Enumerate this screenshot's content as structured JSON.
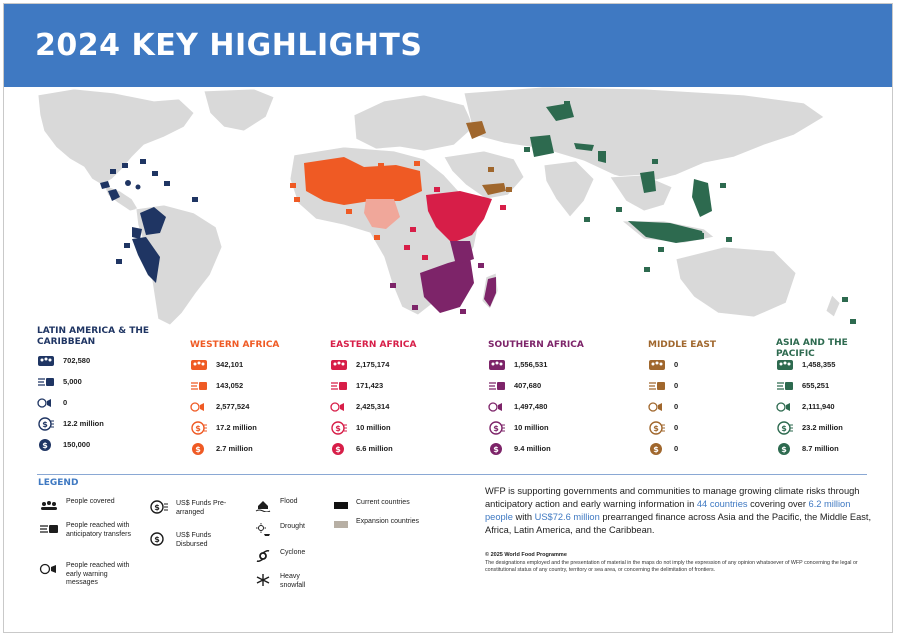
{
  "page": {
    "title": "2024 KEY HIGHLIGHTS"
  },
  "colors": {
    "banner": "#3f79c2",
    "latin_america": "#1f3563",
    "western_africa": "#ef5a24",
    "eastern_africa": "#d71e48",
    "southern_africa": "#7d2469",
    "middle_east": "#a0672d",
    "asia_pacific": "#2d6a4f",
    "expansion": "#b7afa4",
    "land": "#d9d9d9"
  },
  "icons": [
    "people-covered-icon",
    "anticipatory-transfer-icon",
    "early-warning-icon",
    "funds-prearranged-icon",
    "funds-disbursed-icon",
    "flood-icon",
    "drought-icon",
    "cyclone-icon",
    "snowfall-icon"
  ],
  "regions": [
    {
      "id": "latin-america",
      "title": "LATIN AMERICA & THE CARIBBEAN",
      "color": "#1f3563",
      "people_covered": "702,580",
      "anticipatory_transfers": "5,000",
      "early_warning": "0",
      "funds_prearranged": "12.2 million",
      "funds_disbursed": "150,000"
    },
    {
      "id": "western-africa",
      "title": "WESTERN AFRICA",
      "color": "#ef5a24",
      "people_covered": "342,101",
      "anticipatory_transfers": "143,052",
      "early_warning": "2,577,524",
      "funds_prearranged": "17.2 million",
      "funds_disbursed": "2.7 million"
    },
    {
      "id": "eastern-africa",
      "title": "EASTERN AFRICA",
      "color": "#d71e48",
      "people_covered": "2,175,174",
      "anticipatory_transfers": "171,423",
      "early_warning": "2,425,314",
      "funds_prearranged": "10 million",
      "funds_disbursed": "6.6 million"
    },
    {
      "id": "southern-africa",
      "title": "SOUTHERN AFRICA",
      "color": "#7d2469",
      "people_covered": "1,556,531",
      "anticipatory_transfers": "407,680",
      "early_warning": "1,497,480",
      "funds_prearranged": "10 million",
      "funds_disbursed": "9.4 million"
    },
    {
      "id": "middle-east",
      "title": "MIDDLE EAST",
      "color": "#a0672d",
      "people_covered": "0",
      "anticipatory_transfers": "0",
      "early_warning": "0",
      "funds_prearranged": "0",
      "funds_disbursed": "0"
    },
    {
      "id": "asia-pacific",
      "title": "ASIA AND THE PACIFIC",
      "color": "#2d6a4f",
      "people_covered": "1,458,355",
      "anticipatory_transfers": "655,251",
      "early_warning": "2,111,940",
      "funds_prearranged": "23.2 million",
      "funds_disbursed": "8.7 million"
    }
  ],
  "legend": {
    "title": "LEGEND",
    "people_covered": "People covered",
    "anticipatory": "People reached with anticipatory transfers",
    "early_warning": "People reached with early warning messages",
    "funds_prearranged": "US$ Funds Pre-arranged",
    "funds_disbursed": "US$ Funds Disbursed",
    "flood": "Flood",
    "drought": "Drought",
    "cyclone": "Cyclone",
    "snowfall": "Heavy snowfall",
    "current": "Current countries",
    "expansion": "Expansion countries"
  },
  "description": {
    "part1": "WFP is supporting governments and communities to manage growing climate risks through anticipatory action and early warning information in ",
    "countries": "44 countries",
    "part2": " covering over ",
    "people": "6.2 million people",
    "part3": " with ",
    "money": "US$72.6 million",
    "part4": " prearranged finance across Asia and the Pacific, the Middle East, Africa, Latin America, and the Caribbean."
  },
  "copyright": "© 2025 World Food Programme",
  "disclaimer": "The designations employed and the presentation of material in the maps do not imply the expression of any opinion whatsoever of WFP concerning the legal or constitutional status of any country, territory or sea area, or concerning the delimitation of frontiers."
}
